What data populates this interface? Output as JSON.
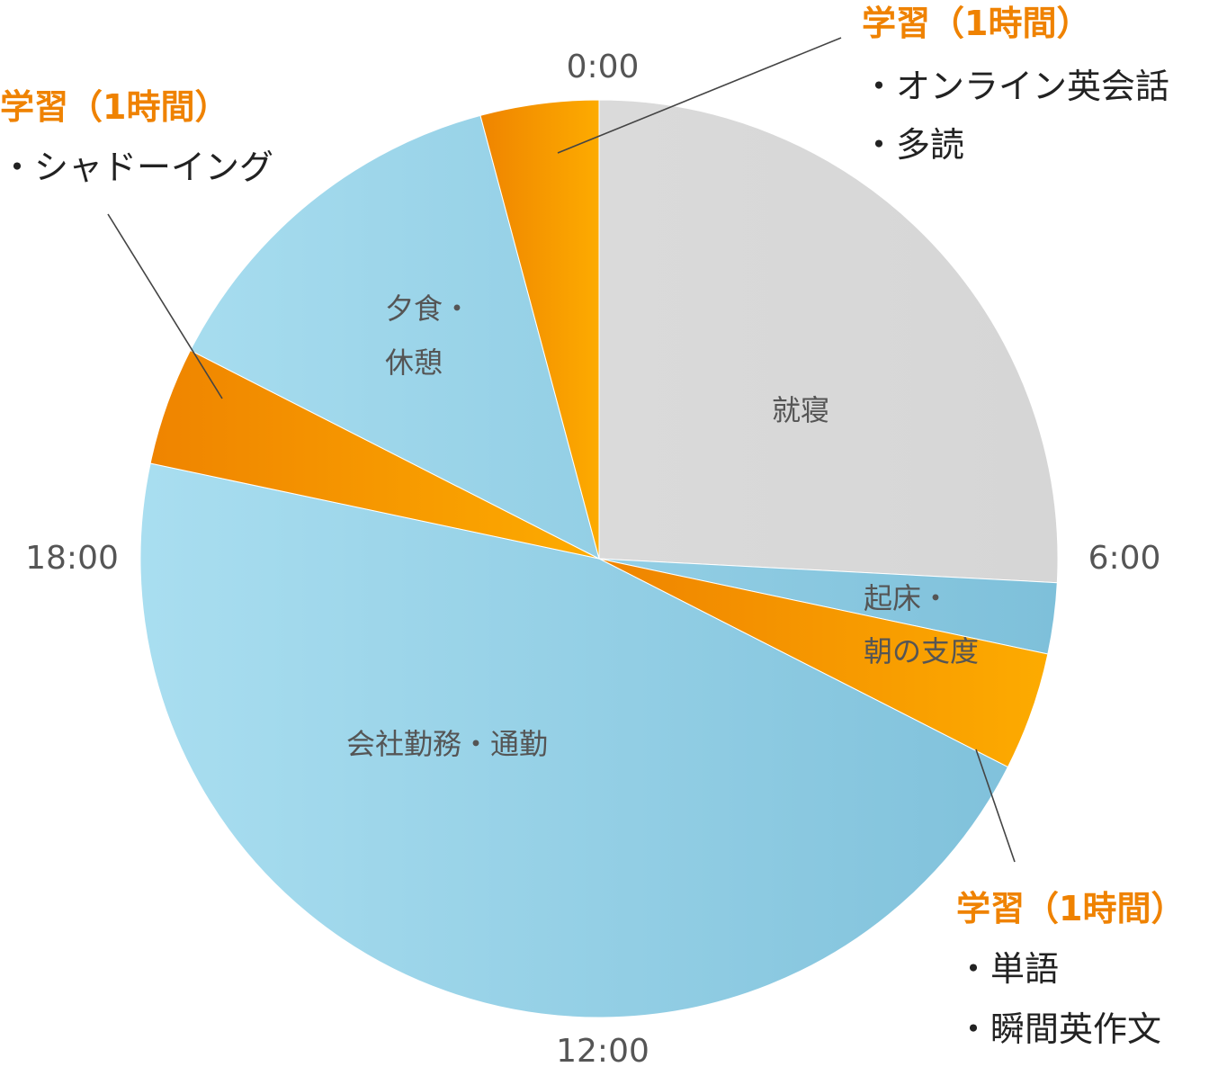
{
  "chart_data": {
    "type": "pie",
    "unit": "hours",
    "start_at": "0:00",
    "direction": "clockwise",
    "slices": [
      {
        "label": "就寝",
        "value": 6.2,
        "color": "#d9d9d9"
      },
      {
        "label": "起床・朝の支度",
        "value": 0.6,
        "color": "#8cc8e0",
        "label_lines": [
          "起床・",
          "朝の支度"
        ]
      },
      {
        "label": "学習（1時間）",
        "value": 1.0,
        "color": "#f39a05"
      },
      {
        "label": "会社勤務・通勤",
        "value": 11.0,
        "color": "#96d2e8"
      },
      {
        "label": "学習（1時間）",
        "value": 1.0,
        "color": "#f39a05"
      },
      {
        "label": "夕食・休憩",
        "value": 3.2,
        "color": "#8ccbe3",
        "label_lines": [
          "夕食・",
          "休憩"
        ]
      },
      {
        "label": "学習（1時間）",
        "value": 1.0,
        "color": "#f39a05"
      }
    ],
    "hour_labels": [
      "0:00",
      "6:00",
      "12:00",
      "18:00"
    ],
    "callouts": [
      {
        "title": "学習（1時間）",
        "items": [
          "・オンライン英会話",
          "・多読"
        ]
      },
      {
        "title": "学習（1時間）",
        "items": [
          "・単語",
          "・瞬間英作文"
        ]
      },
      {
        "title": "学習（1時間）",
        "items": [
          "・シャドーイング"
        ]
      }
    ],
    "colors": {
      "sleep": "#d9d9d9",
      "blue": "#96d2e8",
      "study": "#f39a05",
      "study_text": "#ef8200"
    }
  }
}
